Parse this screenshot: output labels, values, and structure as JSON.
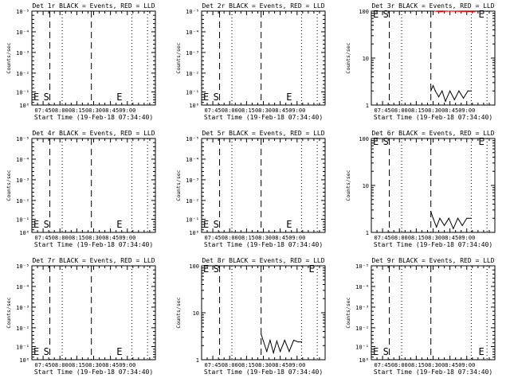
{
  "window": {
    "x_axis_label": "Start Time (19-Feb-18 07:34:40)",
    "y_axis_label": "Counts/sec",
    "start_marker": "S",
    "end_marker": "E",
    "colors": {
      "events": "#000000",
      "lld": "#ff0000",
      "background": "#ffffff"
    }
  },
  "chart_data": [
    {
      "type": "line",
      "title": "Det 1r BLACK = Events, RED = LLD",
      "xlabel": "Start Time (19-Feb-18 07:34:40)",
      "ylabel": "Counts/sec",
      "x_ticks": [
        "07:45",
        "08:00",
        "08:15",
        "08:30",
        "08:45",
        "09:00"
      ],
      "y_ticks": [
        "10⁰",
        "10⁻¹",
        "10⁻²",
        "10⁻³",
        "10⁻⁴",
        "10⁻⁵"
      ],
      "ylim_exp": [
        0,
        -5
      ],
      "scale": "custom",
      "series": [],
      "markers": {
        "S_time_min": 9,
        "E_time_min": 74
      },
      "dashed_min": [
        16,
        53
      ],
      "dotted_min": [
        27,
        89,
        103
      ]
    },
    {
      "type": "line",
      "title": "Det 2r BLACK = Events, RED = LLD",
      "xlabel": "Start Time (19-Feb-18 07:34:40)",
      "ylabel": "Counts/sec",
      "x_ticks": [
        "07:45",
        "08:00",
        "08:15",
        "08:30",
        "08:45",
        "09:00"
      ],
      "y_ticks": [
        "10⁰",
        "10⁻¹",
        "10⁻²",
        "10⁻³",
        "10⁻⁴",
        "10⁻⁵"
      ],
      "ylim_exp": [
        0,
        -5
      ],
      "scale": "custom",
      "series": [],
      "markers": {
        "S_time_min": 9,
        "E_time_min": 74
      },
      "dashed_min": [
        16,
        53
      ],
      "dotted_min": [
        27,
        89,
        103
      ]
    },
    {
      "type": "line",
      "title": "Det 3r BLACK = Events, RED = LLD",
      "xlabel": "Start Time (19-Feb-18 07:34:40)",
      "ylabel": "Counts/sec",
      "x_ticks": [
        "07:45",
        "08:00",
        "08:15",
        "08:30",
        "08:45",
        "09:00"
      ],
      "y_ticks": [
        "1",
        "10",
        "100"
      ],
      "ylim": [
        1,
        100
      ],
      "scale": "log",
      "series": [
        {
          "values": [
            [
              53,
              2
            ],
            [
              55,
              2.6
            ],
            [
              57,
              2
            ],
            [
              60,
              1.5
            ],
            [
              63,
              2
            ],
            [
              66,
              1.2
            ],
            [
              70,
              2
            ],
            [
              74,
              1.3
            ],
            [
              78,
              2
            ],
            [
              82,
              1.4
            ],
            [
              86,
              2
            ],
            [
              89,
              2
            ]
          ],
          "color": "#000000"
        },
        {
          "values": [
            [
              56,
              100
            ],
            [
              62,
              97
            ],
            [
              68,
              100
            ],
            [
              92,
              97
            ]
          ],
          "color": "#ff0000"
        }
      ],
      "markers": {
        "S_time_min": 9,
        "E_time_min": 94
      },
      "dashed_min": [
        16,
        53
      ],
      "dotted_min": [
        27,
        89,
        103
      ]
    },
    {
      "type": "line",
      "title": "Det 4r BLACK = Events, RED = LLD",
      "xlabel": "Start Time (19-Feb-18 07:34:40)",
      "ylabel": "Counts/sec",
      "x_ticks": [
        "07:45",
        "08:00",
        "08:15",
        "08:30",
        "08:45",
        "09:00"
      ],
      "y_ticks": [
        "10⁰",
        "10⁻¹",
        "10⁻²",
        "10⁻³",
        "10⁻⁴",
        "10⁻⁵"
      ],
      "ylim_exp": [
        0,
        -5
      ],
      "scale": "custom",
      "series": [],
      "markers": {
        "S_time_min": 9,
        "E_time_min": 74
      },
      "dashed_min": [
        16,
        53
      ],
      "dotted_min": [
        27,
        89,
        103
      ]
    },
    {
      "type": "line",
      "title": "Det 5r BLACK = Events, RED = LLD",
      "xlabel": "Start Time (19-Feb-18 07:34:40)",
      "ylabel": "Counts/sec",
      "x_ticks": [
        "07:45",
        "08:00",
        "08:15",
        "08:30",
        "08:45",
        "09:00"
      ],
      "y_ticks": [
        "10⁰",
        "10⁻¹",
        "10⁻²",
        "10⁻³",
        "10⁻⁴",
        "10⁻⁵"
      ],
      "ylim_exp": [
        0,
        -5
      ],
      "scale": "custom",
      "series": [],
      "markers": {
        "S_time_min": 9,
        "E_time_min": 74
      },
      "dashed_min": [
        16,
        53
      ],
      "dotted_min": [
        27,
        89,
        103
      ]
    },
    {
      "type": "line",
      "title": "Det 6r BLACK = Events, RED = LLD",
      "xlabel": "Start Time (19-Feb-18 07:34:40)",
      "ylabel": "Counts/sec",
      "x_ticks": [
        "07:45",
        "08:00",
        "08:15",
        "08:30",
        "08:45",
        "09:00"
      ],
      "y_ticks": [
        "1",
        "10",
        "100"
      ],
      "ylim": [
        1,
        100
      ],
      "scale": "log",
      "series": [
        {
          "values": [
            [
              53,
              2.8
            ],
            [
              55,
              2
            ],
            [
              58,
              1.3
            ],
            [
              61,
              2
            ],
            [
              65,
              1.4
            ],
            [
              69,
              2
            ],
            [
              73,
              1.2
            ],
            [
              77,
              2
            ],
            [
              81,
              1.4
            ],
            [
              85,
              2
            ],
            [
              89,
              2
            ]
          ],
          "color": "#000000"
        }
      ],
      "markers": {
        "S_time_min": 9,
        "E_time_min": 94
      },
      "dashed_min": [
        16,
        53
      ],
      "dotted_min": [
        27,
        89,
        103
      ]
    },
    {
      "type": "line",
      "title": "Det 7r BLACK = Events, RED = LLD",
      "xlabel": "Start Time (19-Feb-18 07:34:40)",
      "ylabel": "Counts/sec",
      "x_ticks": [
        "07:45",
        "08:00",
        "08:15",
        "08:30",
        "08:45",
        "09:00"
      ],
      "y_ticks": [
        "10⁰",
        "10⁻¹",
        "10⁻²",
        "10⁻³",
        "10⁻⁴",
        "10⁻⁵"
      ],
      "ylim_exp": [
        0,
        -5
      ],
      "scale": "custom",
      "series": [],
      "markers": {
        "S_time_min": 9,
        "E_time_min": 74
      },
      "dashed_min": [
        16,
        53
      ],
      "dotted_min": [
        27,
        89,
        103
      ]
    },
    {
      "type": "line",
      "title": "Det 8r BLACK = Events, RED = LLD",
      "xlabel": "Start Time (19-Feb-18 07:34:40)",
      "ylabel": "Counts/sec",
      "x_ticks": [
        "07:45",
        "08:00",
        "08:15",
        "08:30",
        "08:45",
        "09:00"
      ],
      "y_ticks": [
        "1",
        "10",
        "100"
      ],
      "ylim": [
        1,
        100
      ],
      "scale": "log",
      "series": [
        {
          "values": [
            [
              53,
              3.5
            ],
            [
              55,
              2.5
            ],
            [
              58,
              1.5
            ],
            [
              61,
              2.6
            ],
            [
              64,
              1.4
            ],
            [
              67,
              2.5
            ],
            [
              70,
              1.5
            ],
            [
              74,
              2.6
            ],
            [
              78,
              1.5
            ],
            [
              82,
              2.6
            ],
            [
              86,
              2.4
            ],
            [
              89,
              2.4
            ]
          ],
          "color": "#000000"
        }
      ],
      "markers": {
        "S_time_min": 9,
        "E_time_min": 94
      },
      "dashed_min": [
        16,
        53
      ],
      "dotted_min": [
        27,
        89,
        103
      ]
    },
    {
      "type": "line",
      "title": "Det 9r BLACK = Events, RED = LLD",
      "xlabel": "Start Time (19-Feb-18 07:34:40)",
      "ylabel": "Counts/sec",
      "x_ticks": [
        "07:45",
        "08:00",
        "08:15",
        "08:30",
        "08:45",
        "09:00"
      ],
      "y_ticks": [
        "10⁰",
        "10⁻¹",
        "10⁻²",
        "10⁻³",
        "10⁻⁴",
        "10⁻⁵"
      ],
      "ylim_exp": [
        0,
        -5
      ],
      "scale": "custom",
      "series": [],
      "markers": {
        "S_time_min": 9,
        "E_time_min": 94
      },
      "dashed_min": [
        16,
        53
      ],
      "dotted_min": [
        27,
        89,
        103
      ]
    }
  ]
}
